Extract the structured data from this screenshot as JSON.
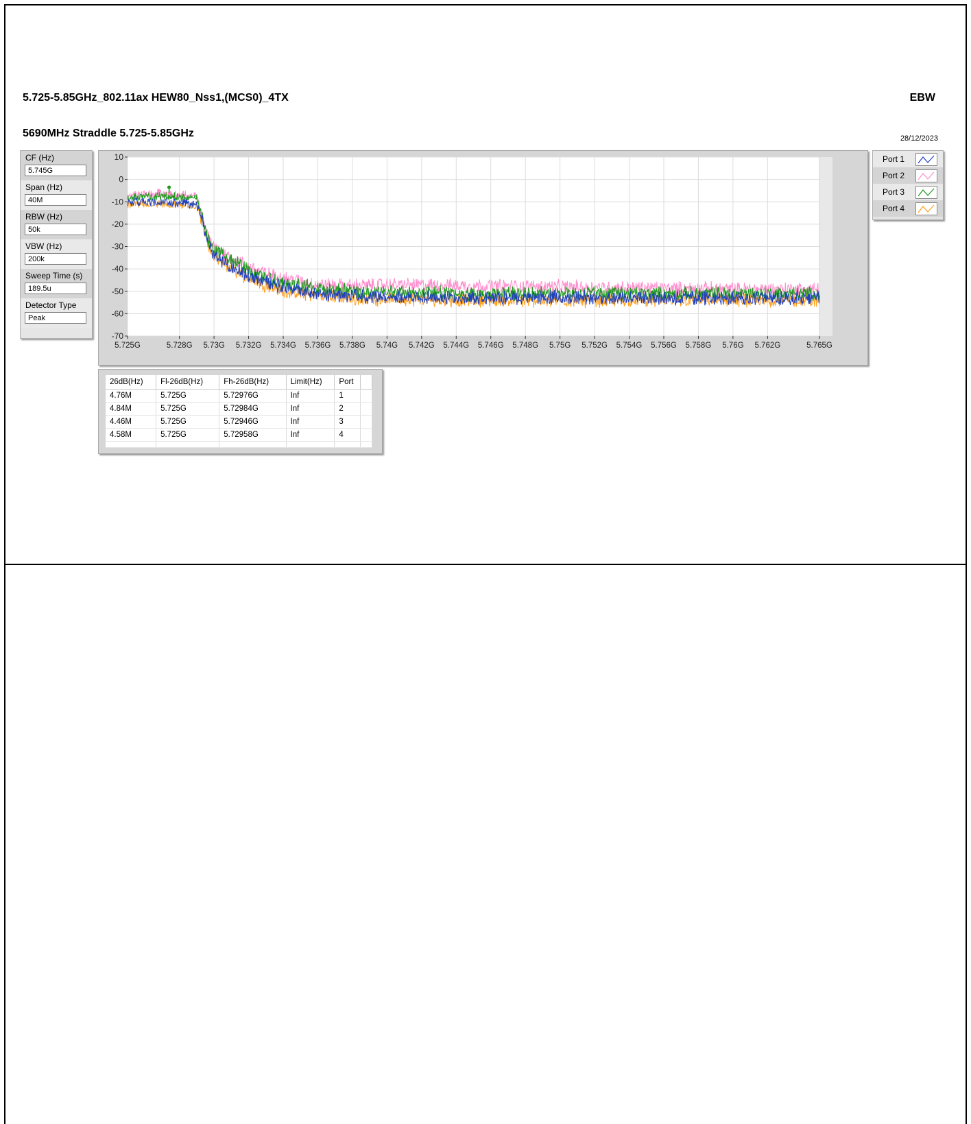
{
  "header": {
    "title": "5.725-5.85GHz_802.11ax HEW80_Nss1,(MCS0)_4TX",
    "subtitle": "5690MHz Straddle 5.725-5.85GHz",
    "tag": "EBW",
    "date": "28/12/2023"
  },
  "params": [
    {
      "label": "CF (Hz)",
      "value": "5.745G"
    },
    {
      "label": "Span (Hz)",
      "value": "40M"
    },
    {
      "label": "RBW (Hz)",
      "value": "50k"
    },
    {
      "label": "VBW (Hz)",
      "value": "200k"
    },
    {
      "label": "Sweep Time (s)",
      "value": "189.5u"
    },
    {
      "label": "Detector Type",
      "value": "Peak"
    }
  ],
  "legend": [
    {
      "name": "Port 1",
      "color": "#1f3fbf"
    },
    {
      "name": "Port 2",
      "color": "#ff8fcf"
    },
    {
      "name": "Port 3",
      "color": "#1e9a1e"
    },
    {
      "name": "Port 4",
      "color": "#ff9f1a"
    }
  ],
  "results_table": {
    "columns": [
      "26dB(Hz)",
      "Fl-26dB(Hz)",
      "Fh-26dB(Hz)",
      "Limit(Hz)",
      "Port"
    ],
    "rows": [
      [
        "4.76M",
        "5.725G",
        "5.72976G",
        "Inf",
        "1"
      ],
      [
        "4.84M",
        "5.725G",
        "5.72984G",
        "Inf",
        "2"
      ],
      [
        "4.46M",
        "5.725G",
        "5.72946G",
        "Inf",
        "3"
      ],
      [
        "4.58M",
        "5.725G",
        "5.72958G",
        "Inf",
        "4"
      ]
    ]
  },
  "chart_data": {
    "type": "line",
    "xlim": [
      5.725,
      5.765
    ],
    "ylim": [
      -70,
      10
    ],
    "grid": true,
    "legend_position": "right",
    "x_tick_labels": [
      "5.725G",
      "5.728G",
      "5.73G",
      "5.732G",
      "5.734G",
      "5.736G",
      "5.738G",
      "5.74G",
      "5.742G",
      "5.744G",
      "5.746G",
      "5.748G",
      "5.75G",
      "5.752G",
      "5.754G",
      "5.756G",
      "5.758G",
      "5.76G",
      "5.762G",
      "5.765G"
    ],
    "x_ticks": [
      5.725,
      5.728,
      5.73,
      5.732,
      5.734,
      5.736,
      5.738,
      5.74,
      5.742,
      5.744,
      5.746,
      5.748,
      5.75,
      5.752,
      5.754,
      5.756,
      5.758,
      5.76,
      5.762,
      5.765
    ],
    "y_ticks": [
      10,
      0,
      -10,
      -20,
      -30,
      -40,
      -50,
      -60,
      -70
    ],
    "series": [
      {
        "name": "Port 1",
        "color": "#1f3fbf",
        "x": [
          5.725,
          5.727,
          5.729,
          5.7292,
          5.7296,
          5.73,
          5.731,
          5.732,
          5.733,
          5.734,
          5.736,
          5.738,
          5.74,
          5.745,
          5.75,
          5.755,
          5.76,
          5.765
        ],
        "y": [
          -10,
          -10.5,
          -11,
          -15,
          -27,
          -34,
          -39,
          -43,
          -46,
          -48,
          -51,
          -52,
          -52.5,
          -53,
          -53,
          -53,
          -53,
          -53
        ]
      },
      {
        "name": "Port 2",
        "color": "#ff8fcf",
        "x": [
          5.725,
          5.727,
          5.729,
          5.7292,
          5.7296,
          5.73,
          5.731,
          5.732,
          5.733,
          5.734,
          5.736,
          5.738,
          5.74,
          5.745,
          5.75,
          5.755,
          5.76,
          5.765
        ],
        "y": [
          -7,
          -6.5,
          -7.5,
          -13,
          -24,
          -30,
          -35,
          -39,
          -42,
          -44,
          -47,
          -47.5,
          -47,
          -47.5,
          -48,
          -48.5,
          -49,
          -49
        ]
      },
      {
        "name": "Port 3",
        "color": "#1e9a1e",
        "x": [
          5.725,
          5.727,
          5.729,
          5.7292,
          5.7296,
          5.73,
          5.731,
          5.732,
          5.733,
          5.734,
          5.736,
          5.738,
          5.74,
          5.745,
          5.75,
          5.755,
          5.76,
          5.765
        ],
        "y": [
          -8,
          -7.5,
          -8.5,
          -14,
          -25,
          -31,
          -36,
          -40,
          -44,
          -46,
          -49,
          -50,
          -50.5,
          -51,
          -51,
          -51,
          -51,
          -51
        ]
      },
      {
        "name": "Port 4",
        "color": "#ff9f1a",
        "x": [
          5.725,
          5.727,
          5.729,
          5.7292,
          5.7296,
          5.73,
          5.731,
          5.732,
          5.733,
          5.734,
          5.736,
          5.738,
          5.74,
          5.745,
          5.75,
          5.755,
          5.76,
          5.765
        ],
        "y": [
          -11,
          -11,
          -11.5,
          -16,
          -28,
          -35,
          -40,
          -44,
          -47,
          -50,
          -52,
          -53,
          -53.5,
          -54,
          -54,
          -54,
          -54,
          -54
        ]
      }
    ],
    "markers": [
      {
        "series": "Port 3",
        "x": 5.7274,
        "y": -3.5
      },
      {
        "series": "Port 2",
        "x": 5.7268,
        "y": -5
      },
      {
        "series": "Port 3",
        "x": 5.7297,
        "y": -28
      }
    ]
  }
}
